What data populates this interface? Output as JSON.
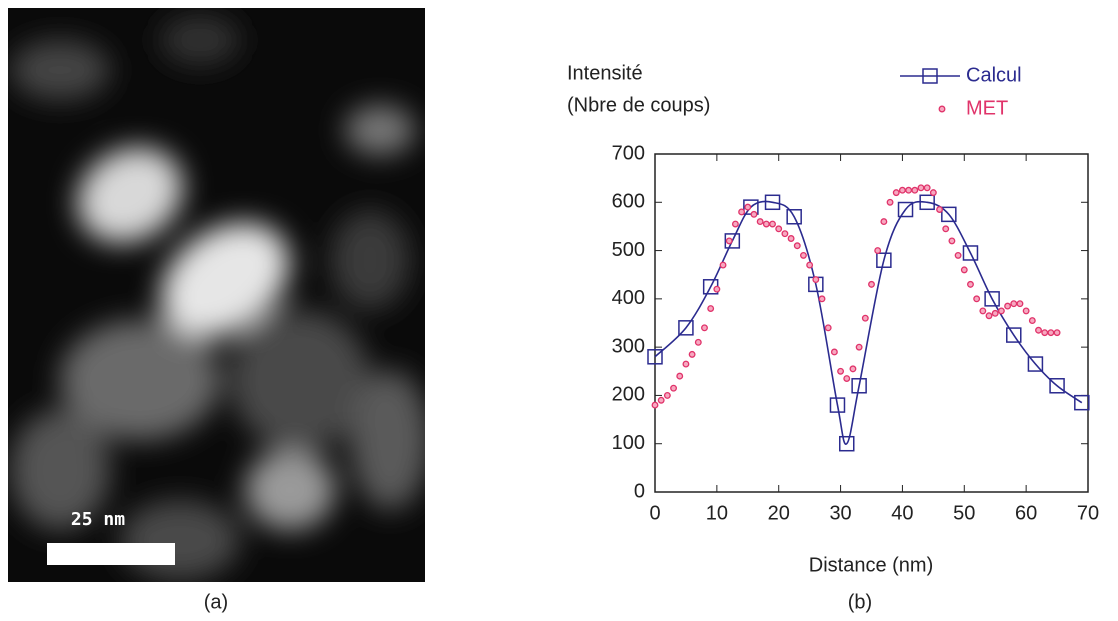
{
  "image": {
    "scale_label": "25 nm",
    "caption": "(a)"
  },
  "chart_data": {
    "type": "line",
    "caption": "(b)",
    "y_label": [
      "Intensité",
      "(Nbre de coups)"
    ],
    "x_label": "Distance (nm)",
    "xlim": [
      0,
      70
    ],
    "xticks": [
      0,
      10,
      20,
      30,
      40,
      50,
      60,
      70
    ],
    "ylim": [
      0,
      700
    ],
    "yticks": [
      0,
      100,
      200,
      300,
      400,
      500,
      600,
      700
    ],
    "series": [
      {
        "name": "Calcul",
        "color": "#2b2b8f",
        "line": true,
        "marker": "square",
        "x": [
          0,
          5,
          9,
          12.5,
          15.5,
          19,
          22.5,
          26,
          29.5,
          31,
          33,
          37,
          40.5,
          44,
          47.5,
          51,
          54.5,
          58,
          61.5,
          65,
          69
        ],
        "values": [
          280,
          340,
          425,
          520,
          590,
          600,
          570,
          430,
          180,
          100,
          220,
          480,
          585,
          600,
          575,
          495,
          400,
          325,
          265,
          220,
          185
        ]
      },
      {
        "name": "MET",
        "color": "#e0336a",
        "line": false,
        "marker": "circle",
        "x": [
          0,
          1,
          2,
          3,
          4,
          5,
          6,
          7,
          8,
          9,
          10,
          11,
          12,
          13,
          14,
          15,
          16,
          17,
          18,
          19,
          20,
          21,
          22,
          23,
          24,
          25,
          26,
          27,
          28,
          29,
          30,
          31,
          32,
          33,
          34,
          35,
          36,
          37,
          38,
          39,
          40,
          41,
          42,
          43,
          44,
          45,
          46,
          47,
          48,
          49,
          50,
          51,
          52,
          53,
          54,
          55,
          56,
          57,
          58,
          59,
          60,
          61,
          62,
          63,
          64,
          65
        ],
        "values": [
          180,
          190,
          200,
          215,
          240,
          265,
          285,
          310,
          340,
          380,
          420,
          470,
          520,
          555,
          580,
          590,
          575,
          560,
          555,
          555,
          545,
          535,
          525,
          510,
          490,
          470,
          440,
          400,
          340,
          290,
          250,
          235,
          255,
          300,
          360,
          430,
          500,
          560,
          600,
          620,
          625,
          625,
          625,
          630,
          630,
          620,
          585,
          545,
          520,
          490,
          460,
          430,
          400,
          375,
          365,
          370,
          375,
          385,
          390,
          390,
          375,
          355,
          335,
          330,
          330,
          330
        ]
      }
    ]
  }
}
